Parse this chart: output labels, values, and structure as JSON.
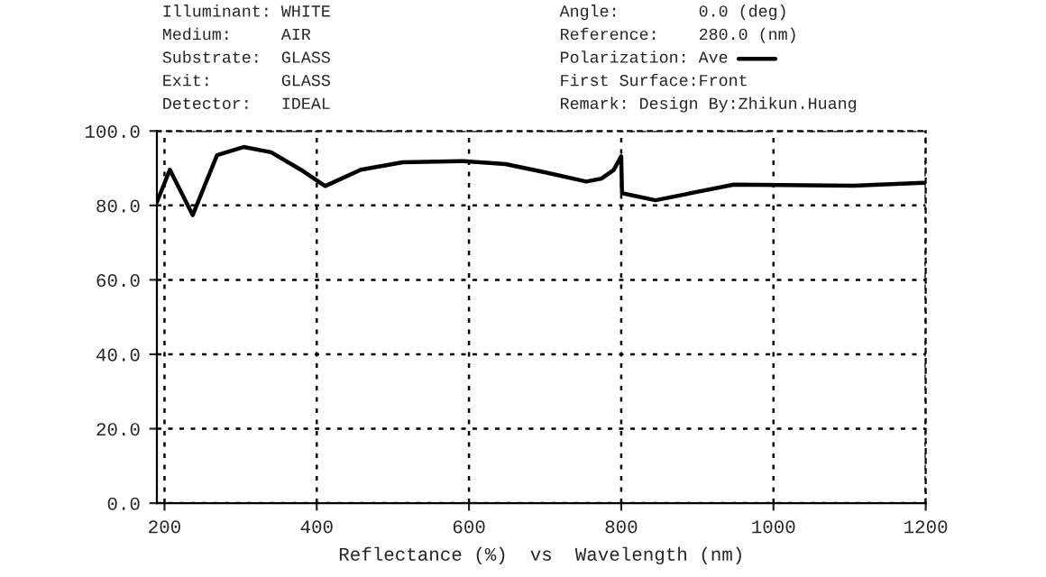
{
  "chart_data": {
    "type": "line",
    "xlabel": "Reflectance (%)  vs  Wavelength (nm)",
    "annotations": [
      "Illuminant: WHITE",
      "Medium:     AIR",
      "Substrate:  GLASS",
      "Exit:       GLASS",
      "Detector:   IDEAL",
      "Angle:        0.0 (deg)",
      "Reference:    280.0 (nm)",
      "Polarization: Ave",
      "First Surface:Front",
      "Remark: Design By:Zhikun.Huang"
    ],
    "series": [
      {
        "color": "#000000",
        "x": [
          190,
          207,
          237,
          269,
          304,
          340,
          379,
          411,
          458,
          513,
          593,
          648,
          702,
          754,
          774,
          790,
          800,
          801,
          845,
          948,
          1105,
          1200
        ],
        "values": [
          80.9,
          89.6,
          77.4,
          93.5,
          95.7,
          94.3,
          89.6,
          85.2,
          89.6,
          91.6,
          91.9,
          91.1,
          88.8,
          86.4,
          87.2,
          89.5,
          93.2,
          83.3,
          81.4,
          85.6,
          85.3,
          86.1
        ]
      }
    ],
    "xlim": [
      190,
      1200
    ],
    "xticks": [
      200,
      400,
      600,
      800,
      1000,
      1200
    ],
    "ylim": [
      0,
      100
    ],
    "yticks": [
      {
        "value": 0,
        "label": "0.0"
      },
      {
        "value": 20,
        "label": "20.0"
      },
      {
        "value": 40,
        "label": "40.0"
      },
      {
        "value": 60,
        "label": "60.0"
      },
      {
        "value": 80,
        "label": "80.0"
      },
      {
        "value": 100,
        "label": "100.0"
      }
    ],
    "grid": true,
    "legend": false,
    "marker": "none",
    "line_style": "solid"
  }
}
